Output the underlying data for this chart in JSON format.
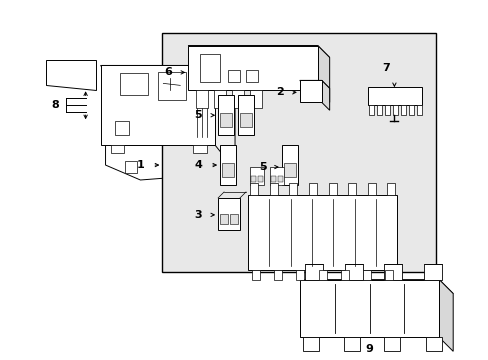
{
  "background_color": "#ffffff",
  "line_color": "#000000",
  "gray_fill": "#e8e8e8",
  "figure_width": 4.89,
  "figure_height": 3.6,
  "dpi": 100,
  "font_size": 8
}
